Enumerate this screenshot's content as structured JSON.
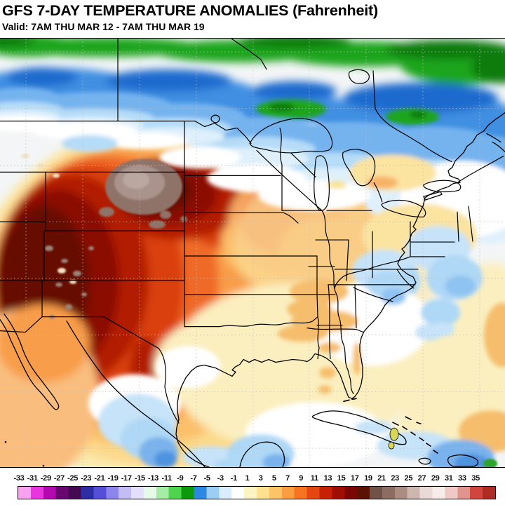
{
  "header": {
    "title": "GFS 7-DAY TEMPERATURE ANOMALIES (Fahrenheit)",
    "valid": "Valid: 7AM THU MAR 12 - 7AM THU MAR 19"
  },
  "colorbar": {
    "ticks": [
      "-33",
      "-31",
      "-29",
      "-27",
      "-25",
      "-23",
      "-21",
      "-19",
      "-17",
      "-15",
      "-13",
      "-11",
      "-9",
      "-7",
      "-5",
      "-3",
      "-1",
      "1",
      "3",
      "5",
      "7",
      "9",
      "11",
      "13",
      "15",
      "17",
      "19",
      "21",
      "23",
      "25",
      "27",
      "29",
      "31",
      "33",
      "35"
    ],
    "colors": [
      "#F7A1EF",
      "#E935DE",
      "#B409AE",
      "#6A0670",
      "#430A52",
      "#2D2DA4",
      "#554FD8",
      "#8D85EB",
      "#C4BCF5",
      "#E4E0FB",
      "#E7FAE7",
      "#A5EDA5",
      "#4ED44E",
      "#0D9B0D",
      "#2D88E3",
      "#9CCDF5",
      "#D9EDFC",
      "#FFFFFF",
      "#FDF4C3",
      "#FEE28F",
      "#FDC468",
      "#FB9E41",
      "#F67420",
      "#E44711",
      "#C62105",
      "#A00D03",
      "#7A0701",
      "#5A1205",
      "#705247",
      "#8D6C62",
      "#AB8C82",
      "#CDB6AE",
      "#EADAD5",
      "#F6ECE9",
      "#EFC9C6",
      "#E1948E",
      "#D0463E",
      "#AF2C24"
    ]
  },
  "map": {
    "palette": {
      "base": "#F3F5F6",
      "white": "#FFFFFF",
      "top_green": "#1FA51F",
      "top_dark_green": "#0A7C0A",
      "band_blue_dark": "#1F6BCE",
      "band_blue": "#3F8FE2",
      "band_blue_light": "#74B3EF",
      "band_blue_pale": "#B5DCF8",
      "band_blue_palest": "#DFF0FC",
      "warm_cream": "#FBE9AE",
      "warm_yellow": "#FCD98C",
      "warm_golden": "#FBBF69",
      "warm_orange_light": "#F89D4A",
      "warm_orange": "#EF6B25",
      "warm_red_orange": "#DA400F",
      "warm_red": "#B21B06",
      "warm_dark_red": "#8A0D02",
      "warm_maroon": "#660A02",
      "brown_blob": "#8F7369",
      "brown_blob_light": "#A9938B",
      "brown_blob_lighter": "#BAA79F",
      "lakes_orange": "#F49455",
      "lakes_orange_soft": "#F8B267",
      "east_cream": "#FBE3A0",
      "se_cream": "#FBEFC0",
      "se_orange": "#F6BE6C",
      "patch_blue_pale": "#C6E3F9",
      "patch_blue": "#AFD8F6",
      "patch_blue_med": "#8FC3F2",
      "patch_blue_deep": "#4E93E0",
      "mex_blue": "#79B2EC",
      "pac_peach": "#F9BE7E",
      "speckle": "#9B8279",
      "speckle_light": "#F2DFC2",
      "yellow_spot": "#F7E59A",
      "island_green": "#2FA32F",
      "bahama_yellow": "#D8D855",
      "boundary": "#000000",
      "graticule": "#BDBDBD"
    }
  }
}
